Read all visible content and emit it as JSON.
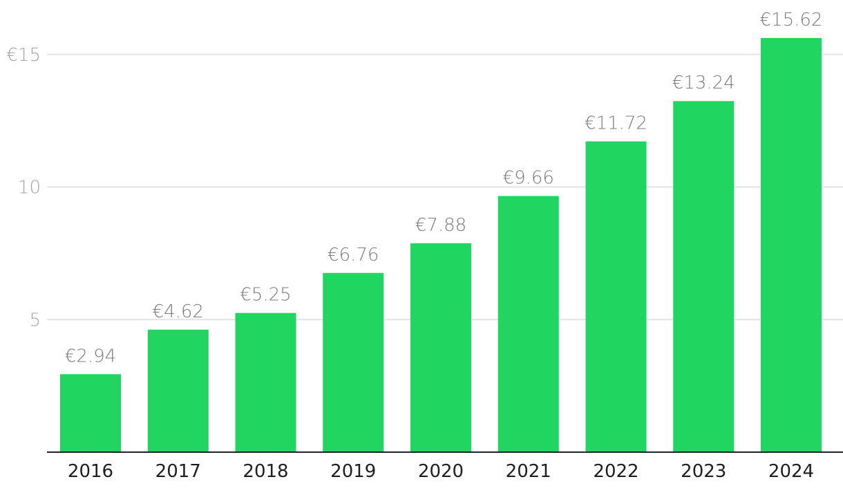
{
  "chart_data": {
    "type": "bar",
    "title": "",
    "xlabel": "",
    "ylabel": "",
    "categories": [
      "2016",
      "2017",
      "2018",
      "2019",
      "2020",
      "2021",
      "2022",
      "2023",
      "2024"
    ],
    "values": [
      2.94,
      4.62,
      5.25,
      6.76,
      7.88,
      9.66,
      11.72,
      13.24,
      15.62
    ],
    "data_labels": [
      "€2.94",
      "€4.62",
      "€5.25",
      "€6.76",
      "€7.88",
      "€9.66",
      "€11.72",
      "€13.24",
      "€15.62"
    ],
    "y_ticks": [
      5,
      10,
      15
    ],
    "y_tick_labels": [
      "5",
      "10",
      "€15"
    ],
    "ylim": [
      0,
      16.5
    ],
    "grid": true,
    "legend": "none",
    "colors": {
      "bar": "#20d660",
      "grid": "#e3e3e3",
      "axis": "#222222",
      "y_tick_text": "#a3a3a3",
      "x_tick_text": "#1f1f1f",
      "data_label_text": "#7b7b7b"
    }
  }
}
